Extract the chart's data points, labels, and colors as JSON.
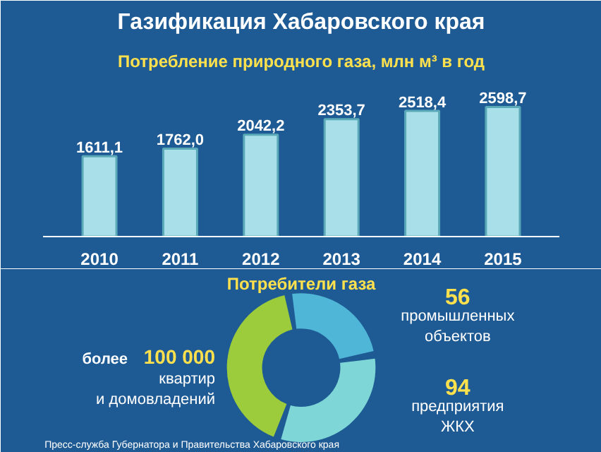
{
  "chart_data": [
    {
      "type": "bar",
      "title": "Газификация Хабаровского края",
      "subtitle": "Потребление природного газа, млн м³ в год",
      "categories": [
        "2010",
        "2011",
        "2012",
        "2013",
        "2014",
        "2015"
      ],
      "values": [
        1611.1,
        1762.0,
        2042.2,
        2353.7,
        2518.4,
        2598.7
      ],
      "value_labels": [
        "1611,1",
        "1762,0",
        "2042,2",
        "2353,7",
        "2518,4",
        "2598,7"
      ],
      "color": "#a8dfe8"
    },
    {
      "type": "donut",
      "title": "Потребители газа",
      "categories": [
        "квартир\nи домовладений",
        "предприятия\nЖКХ",
        "промышленных\nобъектов"
      ],
      "values": [
        42,
        33,
        25
      ],
      "colors": [
        "#9ccc3c",
        "#7fd6d6",
        "#4fb6d8"
      ],
      "annotations": [
        "более",
        "100 000",
        "94",
        "56",
        "Пресс-служба Губернатора и Правительства Хабаровского края"
      ]
    }
  ]
}
